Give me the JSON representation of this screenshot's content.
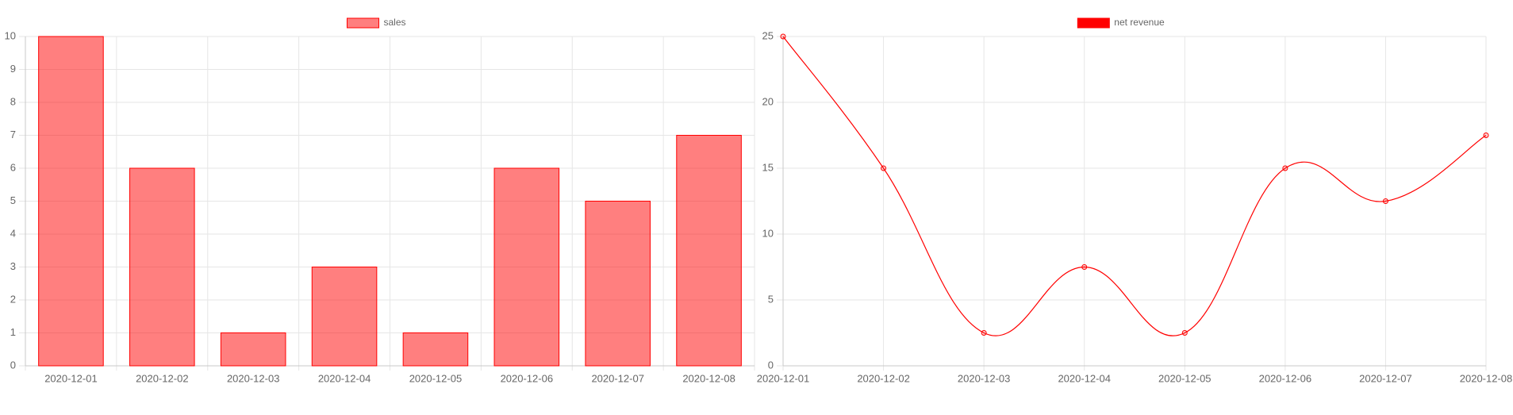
{
  "chart_data": [
    {
      "type": "bar",
      "categories": [
        "2020-12-01",
        "2020-12-02",
        "2020-12-03",
        "2020-12-04",
        "2020-12-05",
        "2020-12-06",
        "2020-12-07",
        "2020-12-08"
      ],
      "series": [
        {
          "name": "sales",
          "color": "#ff0000",
          "values": [
            10,
            6,
            1,
            3,
            1,
            6,
            5,
            7
          ]
        }
      ],
      "ylim": [
        0,
        10
      ],
      "yticks": [
        0,
        1,
        2,
        3,
        4,
        5,
        6,
        7,
        8,
        9,
        10
      ],
      "grid": true
    },
    {
      "type": "line",
      "categories": [
        "2020-12-01",
        "2020-12-02",
        "2020-12-03",
        "2020-12-04",
        "2020-12-05",
        "2020-12-06",
        "2020-12-07",
        "2020-12-08"
      ],
      "series": [
        {
          "name": "net revenue",
          "color": "#ff0000",
          "values": [
            25,
            15,
            2.5,
            7.5,
            2.5,
            15,
            12.5,
            17.5
          ]
        }
      ],
      "ylim": [
        0,
        25
      ],
      "yticks": [
        0,
        5,
        10,
        15,
        20,
        25
      ],
      "grid": true
    }
  ]
}
